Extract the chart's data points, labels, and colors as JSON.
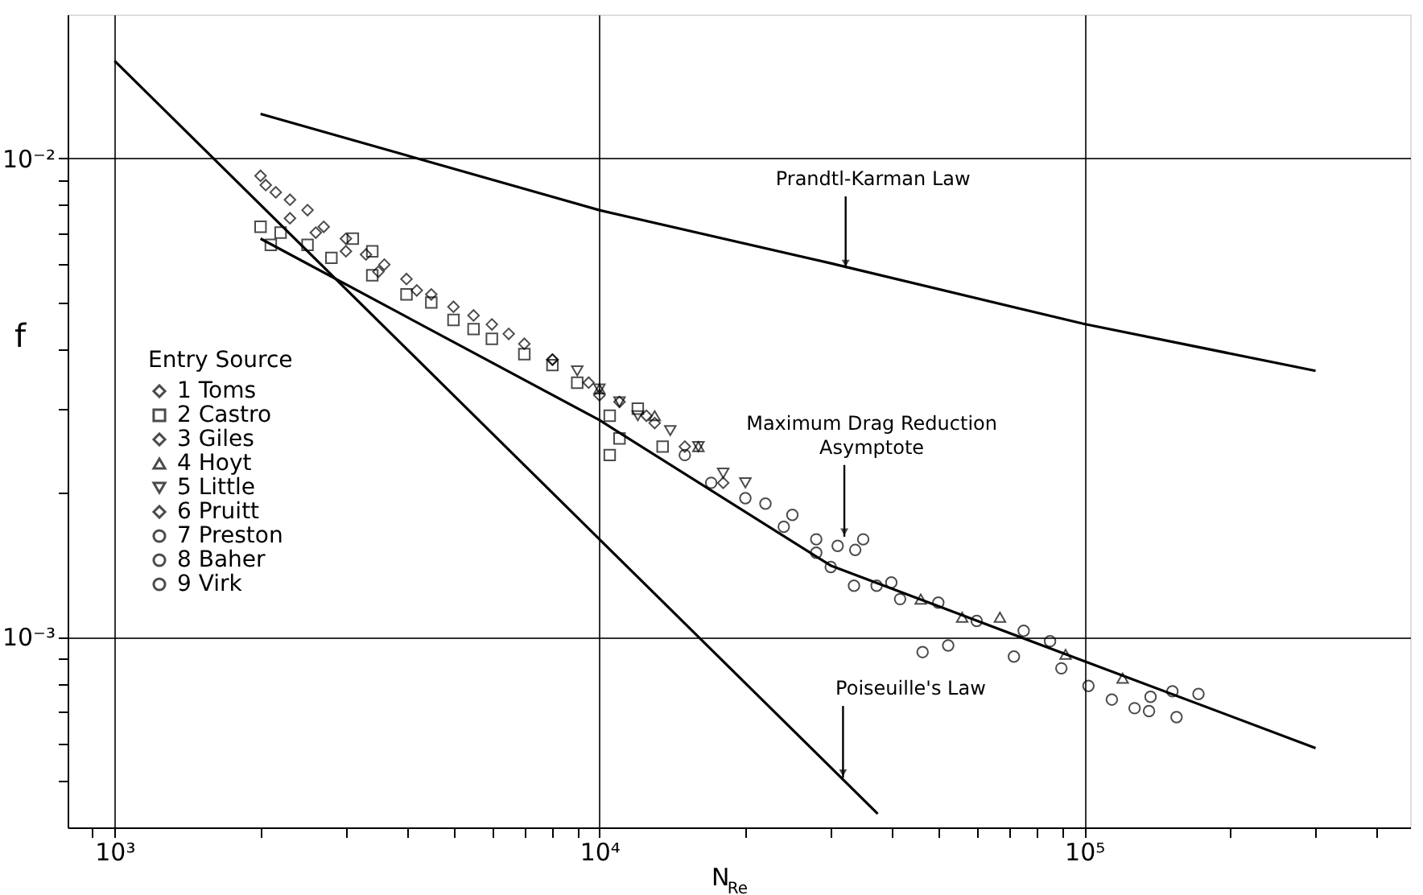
{
  "chart_data": {
    "type": "scatter",
    "xlabel": "N$_{Re}$",
    "ylabel": "f",
    "legend_title": "Entry Source",
    "legend": "left",
    "grid": true,
    "log": "xy",
    "xlim": [
      800,
      470000
    ],
    "ylim": [
      0.0004,
      0.02
    ],
    "xticks": [
      {
        "value": 900,
        "label": null
      },
      {
        "value": 1000,
        "label": "10³"
      },
      {
        "value": 2000,
        "label": null
      },
      {
        "value": 3000,
        "label": null
      },
      {
        "value": 4000,
        "label": null
      },
      {
        "value": 5000,
        "label": null
      },
      {
        "value": 6000,
        "label": null
      },
      {
        "value": 7000,
        "label": null
      },
      {
        "value": 8000,
        "label": null
      },
      {
        "value": 9000,
        "label": null
      },
      {
        "value": 10000,
        "label": "10⁴"
      },
      {
        "value": 20000,
        "label": null
      },
      {
        "value": 30000,
        "label": null
      },
      {
        "value": 40000,
        "label": null
      },
      {
        "value": 50000,
        "label": null
      },
      {
        "value": 60000,
        "label": null
      },
      {
        "value": 70000,
        "label": null
      },
      {
        "value": 80000,
        "label": null
      },
      {
        "value": 90000,
        "label": null
      },
      {
        "value": 100000,
        "label": "10⁵"
      },
      {
        "value": 200000,
        "label": null
      },
      {
        "value": 300000,
        "label": null
      },
      {
        "value": 400000,
        "label": null
      }
    ],
    "yticks": [
      {
        "value": 0.0005,
        "label": null
      },
      {
        "value": 0.0006,
        "label": null
      },
      {
        "value": 0.0007,
        "label": null
      },
      {
        "value": 0.0008,
        "label": null
      },
      {
        "value": 0.0009,
        "label": null
      },
      {
        "value": 0.001,
        "label": "10⁻³"
      },
      {
        "value": 0.002,
        "label": null
      },
      {
        "value": 0.003,
        "label": null
      },
      {
        "value": 0.004,
        "label": null
      },
      {
        "value": 0.005,
        "label": null
      },
      {
        "value": 0.006,
        "label": null
      },
      {
        "value": 0.007,
        "label": null
      },
      {
        "value": 0.008,
        "label": null
      },
      {
        "value": 0.009,
        "label": null
      },
      {
        "value": 0.01,
        "label": "10⁻²"
      }
    ],
    "series": [
      {
        "name": "1 Toms",
        "color": "#000000",
        "marker": "diamond",
        "x": [
          2000,
          2050,
          2150,
          2300,
          2500,
          2700,
          3000,
          3300,
          3600,
          4000
        ],
        "values": [
          0.0092,
          0.0088,
          0.0085,
          0.0082,
          0.0078,
          0.0072,
          0.0068,
          0.0063,
          0.006,
          0.0056
        ]
      },
      {
        "name": "2 Castro",
        "color": "#000000",
        "marker": "square",
        "x": [
          2000,
          2100,
          2200,
          2500,
          2800,
          3100,
          3400,
          3400,
          4000,
          4500,
          5000,
          5500,
          6000,
          7000,
          8000,
          9000,
          10500,
          11000,
          12000,
          13500,
          10500
        ],
        "values": [
          0.0072,
          0.0066,
          0.007,
          0.0066,
          0.0062,
          0.0068,
          0.0057,
          0.0064,
          0.0052,
          0.005,
          0.0046,
          0.0044,
          0.0042,
          0.0039,
          0.0037,
          0.0034,
          0.0029,
          0.0026,
          0.003,
          0.0025,
          0.0024
        ]
      },
      {
        "name": "3 Giles",
        "color": "#000000",
        "marker": "diamond",
        "x": [
          2300,
          2600,
          3000,
          3500,
          4200,
          5000,
          6000,
          7000,
          8000,
          9500,
          11000,
          13000
        ],
        "values": [
          0.0075,
          0.007,
          0.0064,
          0.0058,
          0.0053,
          0.0049,
          0.0045,
          0.0041,
          0.0038,
          0.0034,
          0.0031,
          0.0028
        ]
      },
      {
        "name": "4 Hoyt",
        "color": "#000000",
        "marker": "triangle",
        "x": [
          10000,
          13000,
          16000,
          46000,
          56000,
          67000,
          91500,
          120000
        ],
        "values": [
          0.0033,
          0.0029,
          0.0025,
          0.0012,
          0.0011,
          0.0011,
          0.00092,
          0.00082
        ]
      },
      {
        "name": "5 Little",
        "color": "#000000",
        "marker": "triangle-down",
        "x": [
          9000,
          10000,
          11000,
          12000,
          14000,
          16000,
          18000,
          20000
        ],
        "values": [
          0.0036,
          0.0033,
          0.0031,
          0.0029,
          0.0027,
          0.0025,
          0.0022,
          0.0021
        ]
      },
      {
        "name": "6 Pruitt",
        "color": "#000000",
        "marker": "diamond",
        "x": [
          4500,
          5500,
          6500,
          8000,
          10000,
          12500,
          15000,
          18000
        ],
        "values": [
          0.0052,
          0.0047,
          0.0043,
          0.0038,
          0.0032,
          0.0029,
          0.0025,
          0.0021
        ]
      },
      {
        "name": "7 Preston",
        "color": "#000000",
        "marker": "circle",
        "x": [
          15000,
          17000,
          20000,
          22000,
          25000,
          28000,
          31000,
          35000,
          40000,
          50000
        ],
        "values": [
          0.0024,
          0.0021,
          0.00195,
          0.0019,
          0.0018,
          0.0016,
          0.00155,
          0.0016,
          0.0013,
          0.00118
        ]
      },
      {
        "name": "8 Baher",
        "color": "#000000",
        "marker": "circle",
        "x": [
          24000,
          28000,
          30000,
          33500,
          33700,
          37300,
          41700,
          60000,
          75000,
          85000
        ],
        "values": [
          0.0017,
          0.0015,
          0.0014,
          0.00128,
          0.00152,
          0.00128,
          0.0012,
          0.00108,
          0.00103,
          0.00098
        ]
      },
      {
        "name": "9 Virk",
        "color": "#000000",
        "marker": "circle",
        "x": [
          46400,
          52400,
          71600,
          89700,
          102000,
          114000,
          127000,
          136000,
          137000,
          152000,
          155000,
          172000
        ],
        "values": [
          0.00093,
          0.00096,
          0.00091,
          0.00086,
          0.00079,
          0.00074,
          0.00071,
          0.0007,
          0.00075,
          0.00077,
          0.00068,
          0.00076
        ]
      },
      {
        "type": "line",
        "color": "#000000",
        "x": [
          1000,
          37500
        ],
        "values": [
          0.016,
          0.000427
        ]
      },
      {
        "type": "line",
        "color": "#000000",
        "x": [
          2000,
          10000,
          30000,
          100000,
          300000
        ],
        "values": [
          0.0124,
          0.0078,
          0.00604,
          0.00451,
          0.0036
        ]
      },
      {
        "type": "line",
        "color": "#000000",
        "x": [
          2000,
          10000,
          30000,
          100000,
          300000
        ],
        "values": [
          0.0068,
          0.00284,
          0.00141,
          0.00089,
          0.000586
        ]
      }
    ],
    "annotations": [
      {
        "text": "Prandtl-Karman Law",
        "x": 32200,
        "y": 0.0059
      },
      {
        "text": "Maximum Drag Reduction\nAsymptote",
        "x": 32000,
        "y": 0.00162
      },
      {
        "text": "Poiseuille's Law",
        "x": 31800,
        "y": 0.000508
      }
    ]
  }
}
